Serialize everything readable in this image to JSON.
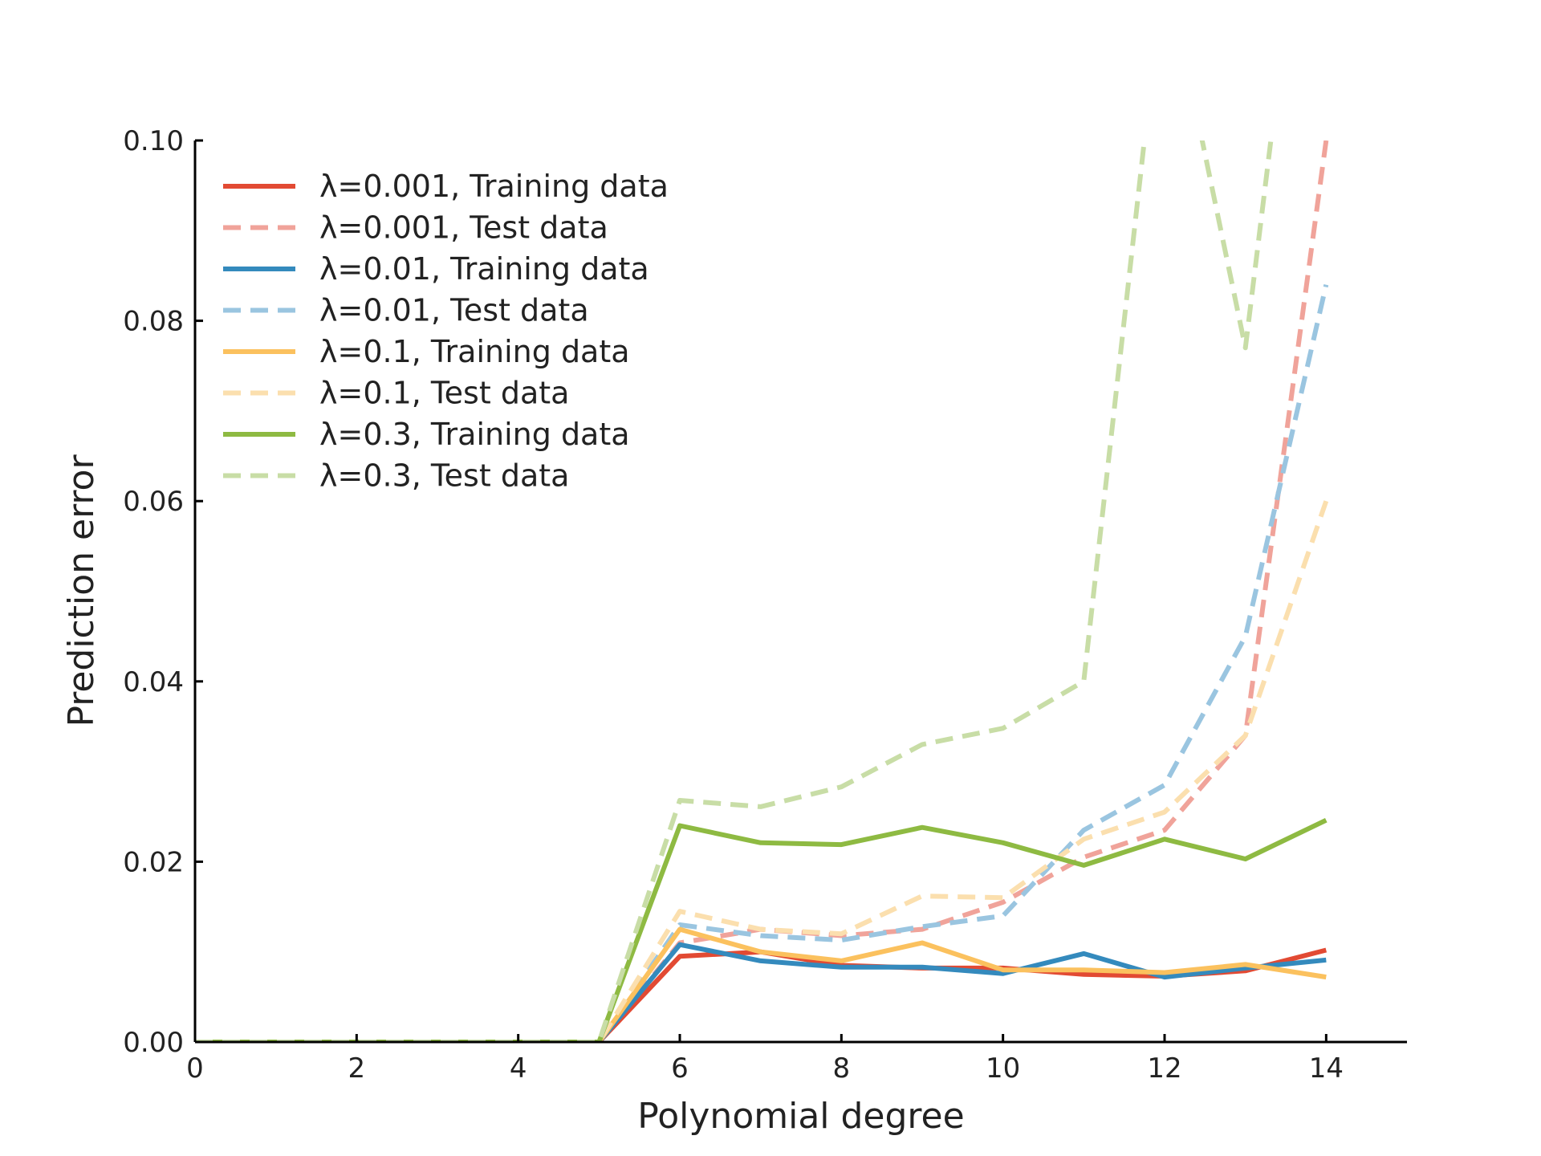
{
  "chart_data": {
    "type": "line",
    "title": "",
    "xlabel": "Polynomial degree",
    "ylabel": "Prediction error",
    "xlim": [
      0,
      15
    ],
    "ylim": [
      0,
      0.1
    ],
    "xticks": [
      0,
      2,
      4,
      6,
      8,
      10,
      12,
      14
    ],
    "xtick_labels": [
      "0",
      "2",
      "4",
      "6",
      "8",
      "10",
      "12",
      "14"
    ],
    "yticks": [
      0,
      0.02,
      0.04,
      0.06,
      0.08,
      0.1
    ],
    "ytick_labels": [
      "0.00",
      "0.02",
      "0.04",
      "0.06",
      "0.08",
      "0.10"
    ],
    "grid": false,
    "legend_position": "top-left",
    "x": [
      0,
      1,
      2,
      3,
      4,
      5,
      6,
      7,
      8,
      9,
      10,
      11,
      12,
      13,
      14
    ],
    "series": [
      {
        "name": "λ=0.001, Training data",
        "color": "#e24a33",
        "style": "solid",
        "values": [
          0,
          0,
          0,
          0,
          0,
          0,
          0.0095,
          0.01,
          0.0085,
          0.0082,
          0.0082,
          0.0075,
          0.0073,
          0.0079,
          0.0102
        ]
      },
      {
        "name": "λ=0.001, Test data",
        "color": "#f0a39a",
        "style": "dashed",
        "values": [
          0,
          0,
          0,
          0,
          0,
          0,
          0.011,
          0.0125,
          0.0118,
          0.0125,
          0.0155,
          0.0205,
          0.0235,
          0.034,
          0.1
        ]
      },
      {
        "name": "λ=0.01, Training data",
        "color": "#348abd",
        "style": "solid",
        "values": [
          0,
          0,
          0,
          0,
          0,
          0,
          0.0108,
          0.009,
          0.0083,
          0.0083,
          0.0076,
          0.0098,
          0.0072,
          0.0082,
          0.0091
        ]
      },
      {
        "name": "λ=0.01, Test data",
        "color": "#9ac5e0",
        "style": "dashed",
        "values": [
          0,
          0,
          0,
          0,
          0,
          0,
          0.013,
          0.0118,
          0.0113,
          0.0128,
          0.014,
          0.0235,
          0.0285,
          0.045,
          0.084
        ]
      },
      {
        "name": "λ=0.1, Training data",
        "color": "#fbc15e",
        "style": "solid",
        "values": [
          0,
          0,
          0,
          0,
          0,
          0,
          0.0125,
          0.01,
          0.009,
          0.011,
          0.008,
          0.008,
          0.0077,
          0.0086,
          0.0072
        ]
      },
      {
        "name": "λ=0.1, Test data",
        "color": "#fbdfae",
        "style": "dashed",
        "values": [
          0,
          0,
          0,
          0,
          0,
          0,
          0.0145,
          0.0125,
          0.012,
          0.0162,
          0.016,
          0.0225,
          0.0255,
          0.034,
          0.06
        ]
      },
      {
        "name": "λ=0.3, Training data",
        "color": "#8eba42",
        "style": "solid",
        "values": [
          0,
          0,
          0,
          0,
          0,
          0,
          0.024,
          0.0221,
          0.0219,
          0.0238,
          0.0221,
          0.0196,
          0.0225,
          0.0203,
          0.0246
        ]
      },
      {
        "name": "λ=0.3, Test data",
        "color": "#c8dda6",
        "style": "dashed",
        "values": [
          0,
          0,
          0,
          0,
          0,
          0,
          0.0268,
          0.0261,
          0.0283,
          0.033,
          0.0348,
          0.04,
          0.12,
          0.077,
          0.15
        ]
      }
    ]
  }
}
